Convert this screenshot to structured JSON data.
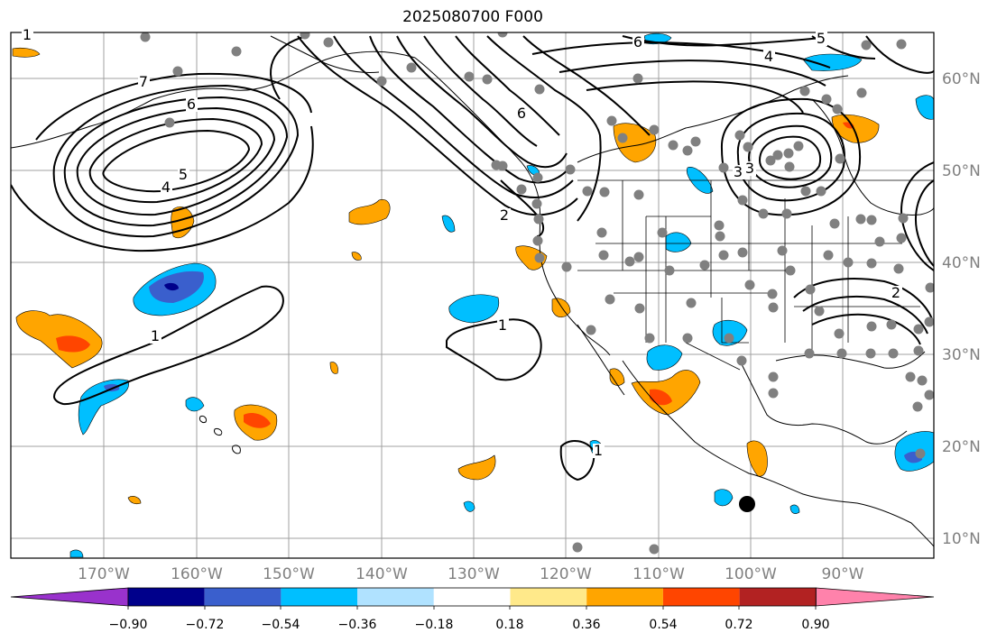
{
  "title": "2025080700 F000",
  "latitude_labels": [
    "60°N",
    "50°N",
    "40°N",
    "30°N",
    "20°N",
    "10°N"
  ],
  "longitude_labels": [
    "170°W",
    "160°W",
    "150°W",
    "140°W",
    "130°W",
    "120°W",
    "110°W",
    "100°W",
    "90°W"
  ],
  "colorbar": {
    "tick_labels": [
      "−0.90",
      "−0.72",
      "−0.54",
      "−0.36",
      "−0.18",
      "0.18",
      "0.36",
      "0.54",
      "0.72",
      "0.90"
    ],
    "colors": [
      "#9932cc",
      "#00008b",
      "#3a5fcd",
      "#00bfff",
      "#b0e2ff",
      "#ffffff",
      "#ffe98a",
      "#ffa500",
      "#ff4500",
      "#b22222",
      "#ff82ab"
    ]
  },
  "contour_labels": [
    "1",
    "1",
    "1",
    "1",
    "2",
    "2",
    "3",
    "3",
    "4",
    "4",
    "5",
    "5",
    "6",
    "6",
    "6",
    "7"
  ],
  "colors": {
    "gridline": "#a0a0a0",
    "coastline": "#000000",
    "station_dot": "#808080",
    "marker": "#000000"
  }
}
